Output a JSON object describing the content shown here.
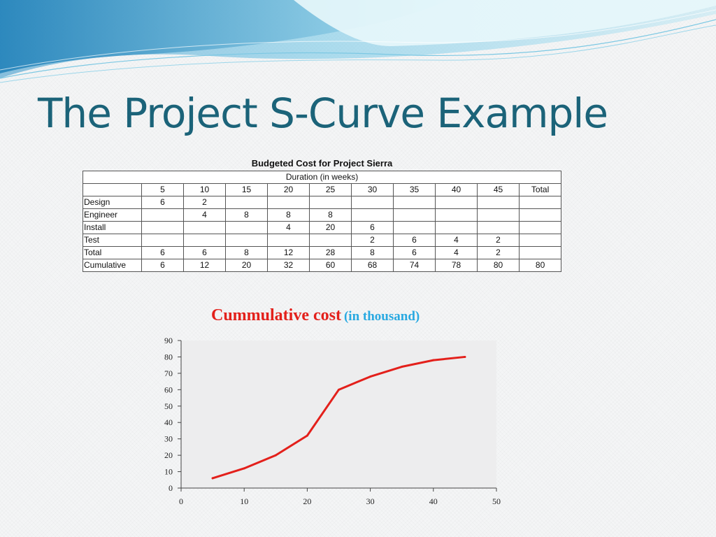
{
  "slide": {
    "title": "The Project S-Curve Example"
  },
  "table": {
    "caption": "Budgeted Cost for Project Sierra",
    "duration_label": "Duration (in weeks)",
    "header": [
      "",
      "5",
      "10",
      "15",
      "20",
      "25",
      "30",
      "35",
      "40",
      "45",
      "Total"
    ],
    "rows": [
      [
        "Design",
        "6",
        "2",
        "",
        "",
        "",
        "",
        "",
        "",
        "",
        ""
      ],
      [
        "Engineer",
        "",
        "4",
        "8",
        "8",
        "8",
        "",
        "",
        "",
        "",
        ""
      ],
      [
        "Install",
        "",
        "",
        "",
        "4",
        "20",
        "6",
        "",
        "",
        "",
        ""
      ],
      [
        "Test",
        "",
        "",
        "",
        "",
        "",
        "2",
        "6",
        "4",
        "2",
        ""
      ],
      [
        "Total",
        "6",
        "6",
        "8",
        "12",
        "28",
        "8",
        "6",
        "4",
        "2",
        ""
      ],
      [
        "Cumulative",
        "6",
        "12",
        "20",
        "32",
        "60",
        "68",
        "74",
        "78",
        "80",
        "80"
      ]
    ]
  },
  "chart_heading": {
    "main": "Cummulative cost",
    "sub": "(in thousand)"
  },
  "colors": {
    "title": "#1b6379",
    "line": "#e3201b",
    "subtitle": "#29a9e1",
    "plot_bg": "#ededee"
  },
  "chart_data": {
    "type": "line",
    "title": "Cummulative cost (in thousand)",
    "xlabel": "",
    "ylabel": "",
    "xlim": [
      0,
      50
    ],
    "ylim": [
      0,
      90
    ],
    "x_ticks": [
      0,
      10,
      20,
      30,
      40,
      50
    ],
    "y_ticks": [
      0,
      10,
      20,
      30,
      40,
      50,
      60,
      70,
      80,
      90
    ],
    "grid": false,
    "legend": "none",
    "series": [
      {
        "x": [
          5,
          10,
          15,
          20,
          25,
          30,
          35,
          40,
          45
        ],
        "y": [
          6,
          12,
          20,
          32,
          60,
          68,
          74,
          78,
          80
        ]
      }
    ]
  }
}
